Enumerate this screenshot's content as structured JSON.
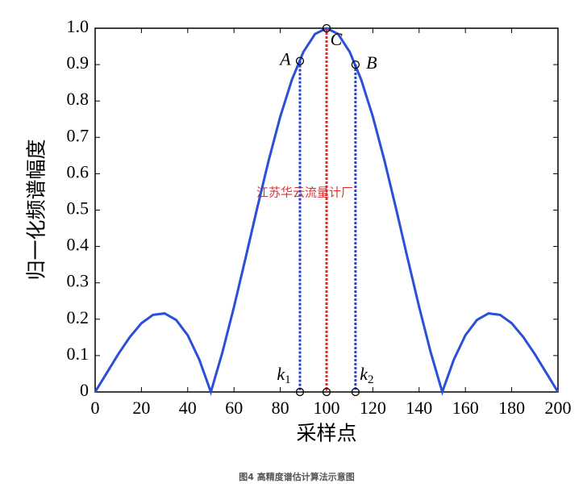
{
  "chart_data": {
    "type": "line",
    "y_label": "归一化频谱幅度",
    "x_label": "采样点",
    "watermark": "江苏华云流量计厂",
    "caption": "图4 高精度谱估计算法示意图",
    "x": [
      0,
      5,
      10,
      15,
      20,
      25,
      30,
      35,
      40,
      45,
      50,
      55,
      60,
      65,
      70,
      75,
      80,
      85,
      90,
      95,
      100,
      105,
      110,
      115,
      120,
      125,
      130,
      135,
      140,
      145,
      150,
      155,
      160,
      165,
      170,
      175,
      180,
      185,
      190,
      195,
      200
    ],
    "series": [
      {
        "color": "#2b4fd6",
        "values": [
          0,
          0.052,
          0.104,
          0.151,
          0.189,
          0.212,
          0.216,
          0.198,
          0.156,
          0.089,
          0,
          0.109,
          0.234,
          0.368,
          0.505,
          0.637,
          0.757,
          0.858,
          0.935,
          0.984,
          1,
          0.984,
          0.935,
          0.858,
          0.757,
          0.637,
          0.505,
          0.368,
          0.234,
          0.109,
          0,
          0.089,
          0.156,
          0.198,
          0.216,
          0.212,
          0.189,
          0.151,
          0.104,
          0.052,
          0
        ]
      }
    ],
    "points": [
      {
        "label": "A",
        "x": 88.5,
        "y": 0.91,
        "color": "#2040d0"
      },
      {
        "label": "C",
        "x": 100,
        "y": 1,
        "color": "#e02828"
      },
      {
        "label": "B",
        "x": 112.5,
        "y": 0.9,
        "color": "#2040d0"
      }
    ],
    "axis_marks": [
      {
        "label": "k",
        "sub": "1",
        "x": 88.5
      },
      {
        "label": "k",
        "sub": "2",
        "x": 112.5
      }
    ],
    "xlim": [
      0,
      200
    ],
    "xticks": [
      0,
      20,
      40,
      60,
      80,
      100,
      120,
      140,
      160,
      180,
      200
    ],
    "ylim": [
      0,
      1
    ],
    "yticks": [
      0,
      0.1,
      0.2,
      0.3,
      0.4,
      0.5,
      0.6,
      0.7,
      0.8,
      0.9,
      {
        "value": 1,
        "label": "1.0"
      }
    ]
  }
}
